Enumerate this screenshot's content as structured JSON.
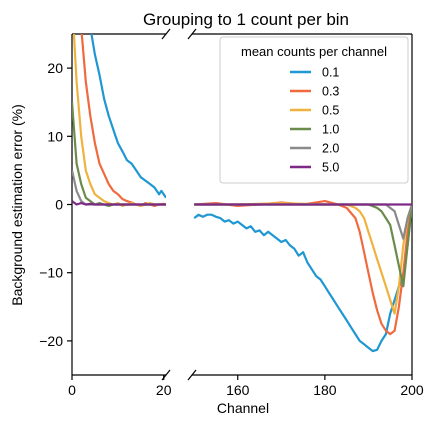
{
  "chart_data": {
    "type": "line",
    "title": "Grouping to 1 count per bin",
    "xlabel": "Channel",
    "ylabel": "Background estimation error (%)",
    "broken_x_axis": true,
    "panels": [
      {
        "xlim": [
          0,
          20.5
        ],
        "xticks": [
          0,
          20
        ]
      },
      {
        "xlim": [
          149.5,
          200
        ],
        "xticks": [
          160,
          180,
          200
        ]
      }
    ],
    "ylim": [
      -25,
      25
    ],
    "yticks": [
      -20,
      -10,
      0,
      10,
      20
    ],
    "legend": {
      "title": "mean counts per channel",
      "placement": "top-right"
    },
    "series": [
      {
        "name": "0.1",
        "color": "#1f97d2",
        "left": [
          [
            0,
            60
          ],
          [
            1,
            45
          ],
          [
            2,
            36
          ],
          [
            3,
            30
          ],
          [
            4,
            26
          ],
          [
            5,
            22
          ],
          [
            6,
            19
          ],
          [
            7,
            15.5
          ],
          [
            8,
            13
          ],
          [
            9,
            11
          ],
          [
            10,
            9
          ],
          [
            11,
            7.8
          ],
          [
            12,
            6.5
          ],
          [
            13,
            6
          ],
          [
            14,
            5
          ],
          [
            15,
            4
          ],
          [
            16,
            3.5
          ],
          [
            17,
            3
          ],
          [
            18,
            2.5
          ],
          [
            19,
            1.5
          ],
          [
            19.5,
            2
          ],
          [
            20,
            1.5
          ],
          [
            20.5,
            1
          ]
        ],
        "right": [
          [
            150,
            -2
          ],
          [
            151,
            -1.5
          ],
          [
            152,
            -1.8
          ],
          [
            153,
            -1.5
          ],
          [
            154,
            -1.5
          ],
          [
            155,
            -1.8
          ],
          [
            156,
            -2
          ],
          [
            157,
            -2.5
          ],
          [
            158,
            -2.3
          ],
          [
            159,
            -2.8
          ],
          [
            160,
            -2.5
          ],
          [
            161,
            -3
          ],
          [
            162,
            -3.5
          ],
          [
            163,
            -3.2
          ],
          [
            164,
            -4
          ],
          [
            165,
            -3.8
          ],
          [
            166,
            -4.5
          ],
          [
            167,
            -4
          ],
          [
            168,
            -4.5
          ],
          [
            169,
            -5
          ],
          [
            170,
            -5.5
          ],
          [
            171,
            -5.2
          ],
          [
            172,
            -6
          ],
          [
            173,
            -6.5
          ],
          [
            174,
            -7.5
          ],
          [
            175,
            -7
          ],
          [
            176,
            -8.5
          ],
          [
            177,
            -9.5
          ],
          [
            178,
            -10.5
          ],
          [
            179,
            -11
          ],
          [
            180,
            -12
          ],
          [
            181,
            -13
          ],
          [
            182,
            -14
          ],
          [
            183,
            -15
          ],
          [
            184,
            -16
          ],
          [
            185,
            -17
          ],
          [
            186,
            -18
          ],
          [
            187,
            -19
          ],
          [
            188,
            -20
          ],
          [
            189,
            -20.5
          ],
          [
            190,
            -21
          ],
          [
            191,
            -21.5
          ],
          [
            192,
            -21.3
          ],
          [
            193,
            -20
          ],
          [
            194,
            -19
          ],
          [
            195,
            -16
          ],
          [
            196,
            -14
          ],
          [
            197,
            -12
          ],
          [
            198,
            -10.5
          ],
          [
            199,
            -6
          ],
          [
            200,
            0
          ]
        ]
      },
      {
        "name": "0.3",
        "color": "#f06a3e",
        "left": [
          [
            0,
            45
          ],
          [
            1,
            35
          ],
          [
            2,
            26
          ],
          [
            3,
            18
          ],
          [
            4,
            13
          ],
          [
            5,
            9
          ],
          [
            6,
            6
          ],
          [
            7,
            4.5
          ],
          [
            8,
            3
          ],
          [
            9,
            2
          ],
          [
            10,
            1.5
          ],
          [
            11,
            0.8
          ],
          [
            12,
            0.5
          ],
          [
            13,
            0.3
          ],
          [
            14,
            0
          ],
          [
            15,
            -0.2
          ],
          [
            16,
            0.2
          ],
          [
            17,
            0
          ],
          [
            18,
            -0.2
          ],
          [
            19,
            0
          ],
          [
            20,
            0.1
          ],
          [
            20.5,
            0
          ]
        ],
        "right": [
          [
            150,
            0
          ],
          [
            155,
            0.2
          ],
          [
            160,
            -0.2
          ],
          [
            165,
            0
          ],
          [
            170,
            0.3
          ],
          [
            175,
            0
          ],
          [
            180,
            0.5
          ],
          [
            183,
            0
          ],
          [
            185,
            -0.5
          ],
          [
            187,
            -2
          ],
          [
            188,
            -4
          ],
          [
            189,
            -7
          ],
          [
            190,
            -10
          ],
          [
            191,
            -13
          ],
          [
            192,
            -15.5
          ],
          [
            193,
            -17.5
          ],
          [
            194,
            -18.5
          ],
          [
            195,
            -19
          ],
          [
            196,
            -18.5
          ],
          [
            197,
            -15
          ],
          [
            198,
            -10
          ],
          [
            199,
            -4
          ],
          [
            200,
            0
          ]
        ]
      },
      {
        "name": "0.5",
        "color": "#f0b23e",
        "left": [
          [
            0,
            30
          ],
          [
            1,
            18
          ],
          [
            2,
            10
          ],
          [
            3,
            5
          ],
          [
            4,
            3
          ],
          [
            5,
            1.5
          ],
          [
            6,
            1
          ],
          [
            7,
            0.5
          ],
          [
            8,
            0.2
          ],
          [
            9,
            0
          ],
          [
            10,
            0.2
          ],
          [
            11,
            -0.2
          ],
          [
            12,
            0
          ],
          [
            13,
            0.2
          ],
          [
            14,
            0
          ],
          [
            15,
            -0.2
          ],
          [
            16,
            0
          ],
          [
            17,
            0.2
          ],
          [
            18,
            0
          ],
          [
            19,
            0
          ],
          [
            20,
            0
          ],
          [
            20.5,
            0
          ]
        ],
        "right": [
          [
            150,
            0
          ],
          [
            160,
            0
          ],
          [
            170,
            0.2
          ],
          [
            180,
            0
          ],
          [
            185,
            0
          ],
          [
            187,
            -0.5
          ],
          [
            188,
            -1
          ],
          [
            189,
            -2
          ],
          [
            190,
            -4
          ],
          [
            191,
            -6
          ],
          [
            192,
            -8
          ],
          [
            193,
            -10
          ],
          [
            194,
            -12
          ],
          [
            195,
            -14
          ],
          [
            196,
            -16
          ],
          [
            197,
            -12
          ],
          [
            198,
            -6
          ],
          [
            199,
            -2
          ],
          [
            200,
            0
          ]
        ]
      },
      {
        "name": "1.0",
        "color": "#6b8b4a",
        "left": [
          [
            0,
            15
          ],
          [
            1,
            6
          ],
          [
            2,
            3
          ],
          [
            3,
            1
          ],
          [
            4,
            0.5
          ],
          [
            5,
            0
          ],
          [
            6,
            0.2
          ],
          [
            7,
            0
          ],
          [
            8,
            -0.2
          ],
          [
            9,
            0
          ],
          [
            10,
            0
          ],
          [
            15,
            0
          ],
          [
            20,
            0
          ],
          [
            20.5,
            0
          ]
        ],
        "right": [
          [
            150,
            0
          ],
          [
            160,
            0
          ],
          [
            170,
            0
          ],
          [
            180,
            0
          ],
          [
            190,
            0
          ],
          [
            192,
            -0.5
          ],
          [
            193,
            -1
          ],
          [
            194,
            -2
          ],
          [
            195,
            -3
          ],
          [
            196,
            -6
          ],
          [
            197,
            -9
          ],
          [
            198,
            -12
          ],
          [
            199,
            -6
          ],
          [
            200,
            0
          ]
        ]
      },
      {
        "name": "2.0",
        "color": "#8a8a8a",
        "left": [
          [
            0,
            5
          ],
          [
            1,
            2
          ],
          [
            2,
            0.5
          ],
          [
            3,
            0
          ],
          [
            5,
            0
          ],
          [
            10,
            0
          ],
          [
            15,
            0
          ],
          [
            20,
            0
          ],
          [
            20.5,
            0
          ]
        ],
        "right": [
          [
            150,
            0
          ],
          [
            160,
            0
          ],
          [
            170,
            0
          ],
          [
            180,
            0
          ],
          [
            190,
            0
          ],
          [
            194,
            0
          ],
          [
            195,
            -0.5
          ],
          [
            196,
            -1
          ],
          [
            197,
            -3
          ],
          [
            198,
            -5
          ],
          [
            199,
            -2
          ],
          [
            200,
            0
          ]
        ]
      },
      {
        "name": "5.0",
        "color": "#7d2a86",
        "left": [
          [
            0,
            0.5
          ],
          [
            1,
            0
          ],
          [
            2,
            0.2
          ],
          [
            3,
            0
          ],
          [
            4,
            0.1
          ],
          [
            5,
            0
          ],
          [
            10,
            0
          ],
          [
            15,
            0
          ],
          [
            20,
            0
          ],
          [
            20.5,
            0
          ]
        ],
        "right": [
          [
            150,
            0
          ],
          [
            160,
            0
          ],
          [
            170,
            0
          ],
          [
            180,
            0
          ],
          [
            190,
            0
          ],
          [
            195,
            0
          ],
          [
            198,
            0
          ],
          [
            200,
            0
          ]
        ]
      }
    ]
  }
}
